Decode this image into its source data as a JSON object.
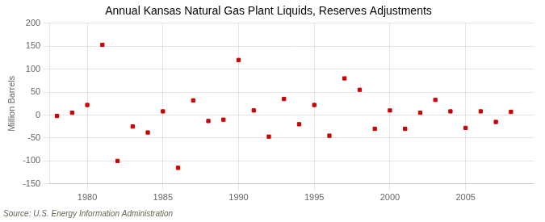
{
  "chart_data": {
    "type": "scatter",
    "title": "Annual Kansas Natural Gas Plant Liquids, Reserves Adjustments",
    "ylabel": "Million Barrels",
    "annotation": "Source: U.S. Energy Information Administration",
    "x": [
      1978,
      1979,
      1980,
      1981,
      1982,
      1983,
      1984,
      1985,
      1986,
      1987,
      1988,
      1989,
      1990,
      1991,
      1992,
      1993,
      1994,
      1995,
      1996,
      1997,
      1998,
      1999,
      2000,
      2001,
      2002,
      2003,
      2004,
      2005,
      2006,
      2007,
      2008
    ],
    "values": [
      -2,
      5,
      22,
      153,
      -100,
      -25,
      -38,
      8,
      -115,
      32,
      -13,
      -10,
      120,
      10,
      -47,
      35,
      -20,
      22,
      -45,
      80,
      55,
      -30,
      10,
      -30,
      5,
      33,
      8,
      -28,
      8,
      -15,
      7
    ],
    "color": "#cc0000",
    "marker": "square",
    "xlim": [
      1977.5,
      2009.5
    ],
    "xticks": [
      1980,
      1985,
      1990,
      1995,
      2000,
      2005
    ],
    "ylim": [
      -150,
      200
    ],
    "yticks": [
      -150,
      -100,
      -50,
      0,
      50,
      100,
      150,
      200
    ],
    "grid": true
  }
}
